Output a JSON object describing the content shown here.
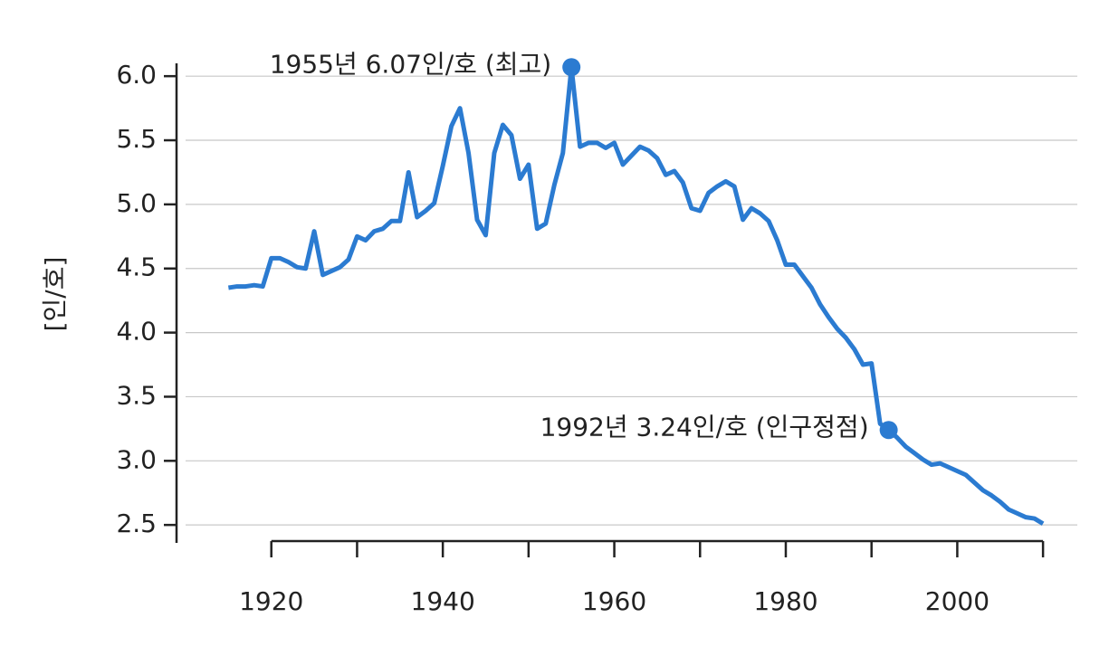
{
  "chart_data": {
    "type": "line",
    "y_label": "[인/호]",
    "x": [
      1915,
      1916,
      1917,
      1918,
      1919,
      1920,
      1921,
      1922,
      1923,
      1924,
      1925,
      1926,
      1927,
      1928,
      1929,
      1930,
      1931,
      1932,
      1933,
      1934,
      1935,
      1936,
      1937,
      1938,
      1939,
      1940,
      1941,
      1942,
      1943,
      1944,
      1945,
      1946,
      1947,
      1948,
      1949,
      1950,
      1951,
      1952,
      1953,
      1954,
      1955,
      1956,
      1957,
      1958,
      1959,
      1960,
      1961,
      1962,
      1963,
      1964,
      1965,
      1966,
      1967,
      1968,
      1969,
      1970,
      1971,
      1972,
      1973,
      1974,
      1975,
      1976,
      1977,
      1978,
      1979,
      1980,
      1981,
      1982,
      1983,
      1984,
      1985,
      1986,
      1987,
      1988,
      1989,
      1990,
      1991,
      1992,
      1993,
      1994,
      1995,
      1996,
      1997,
      1998,
      1999,
      2000,
      2001,
      2002,
      2003,
      2004,
      2005,
      2006,
      2007,
      2008,
      2009,
      2010
    ],
    "series": [
      {
        "color": "#2b7bd1",
        "values": [
          4.35,
          4.36,
          4.36,
          4.37,
          4.36,
          4.58,
          4.58,
          4.55,
          4.51,
          4.5,
          4.79,
          4.45,
          4.48,
          4.51,
          4.57,
          4.75,
          4.72,
          4.79,
          4.81,
          4.87,
          4.87,
          5.25,
          4.9,
          4.95,
          5.01,
          5.3,
          5.61,
          5.75,
          5.4,
          4.88,
          4.76,
          5.4,
          5.62,
          5.54,
          5.2,
          5.31,
          4.81,
          4.85,
          5.15,
          5.4,
          6.07,
          5.45,
          5.48,
          5.48,
          5.44,
          5.48,
          5.31,
          5.38,
          5.45,
          5.42,
          5.36,
          5.23,
          5.26,
          5.17,
          4.97,
          4.95,
          5.09,
          5.14,
          5.18,
          5.14,
          4.88,
          4.97,
          4.93,
          4.87,
          4.72,
          4.53,
          4.53,
          4.44,
          4.35,
          4.22,
          4.12,
          4.03,
          3.96,
          3.87,
          3.75,
          3.76,
          3.29,
          3.24,
          3.18,
          3.11,
          3.06,
          3.01,
          2.97,
          2.98,
          2.95,
          2.92,
          2.89,
          2.83,
          2.77,
          2.73,
          2.68,
          2.62,
          2.59,
          2.56,
          2.55,
          2.51
        ]
      }
    ],
    "annotations": [
      {
        "label": "1955년 6.07인/호 (최고)",
        "x": 1955,
        "y": 6.07
      },
      {
        "label": "1992년 3.24인/호 (인구정점)",
        "x": 1992,
        "y": 3.24
      }
    ],
    "xlim": [
      1910,
      2014
    ],
    "ylim": [
      2.36,
      6.1
    ],
    "xticks": [
      1920,
      1940,
      1960,
      1980,
      2000
    ],
    "xminor_ticks": [
      1930,
      1950,
      1970,
      1990,
      2010
    ],
    "yticks": [
      2.5,
      {
        "value": 3,
        "label": "3.0"
      },
      3.5,
      {
        "value": 4,
        "label": "4.0"
      },
      4.5,
      {
        "value": 5,
        "label": "5.0"
      },
      5.5,
      {
        "value": 6,
        "label": "6.0"
      }
    ],
    "grid": true
  }
}
